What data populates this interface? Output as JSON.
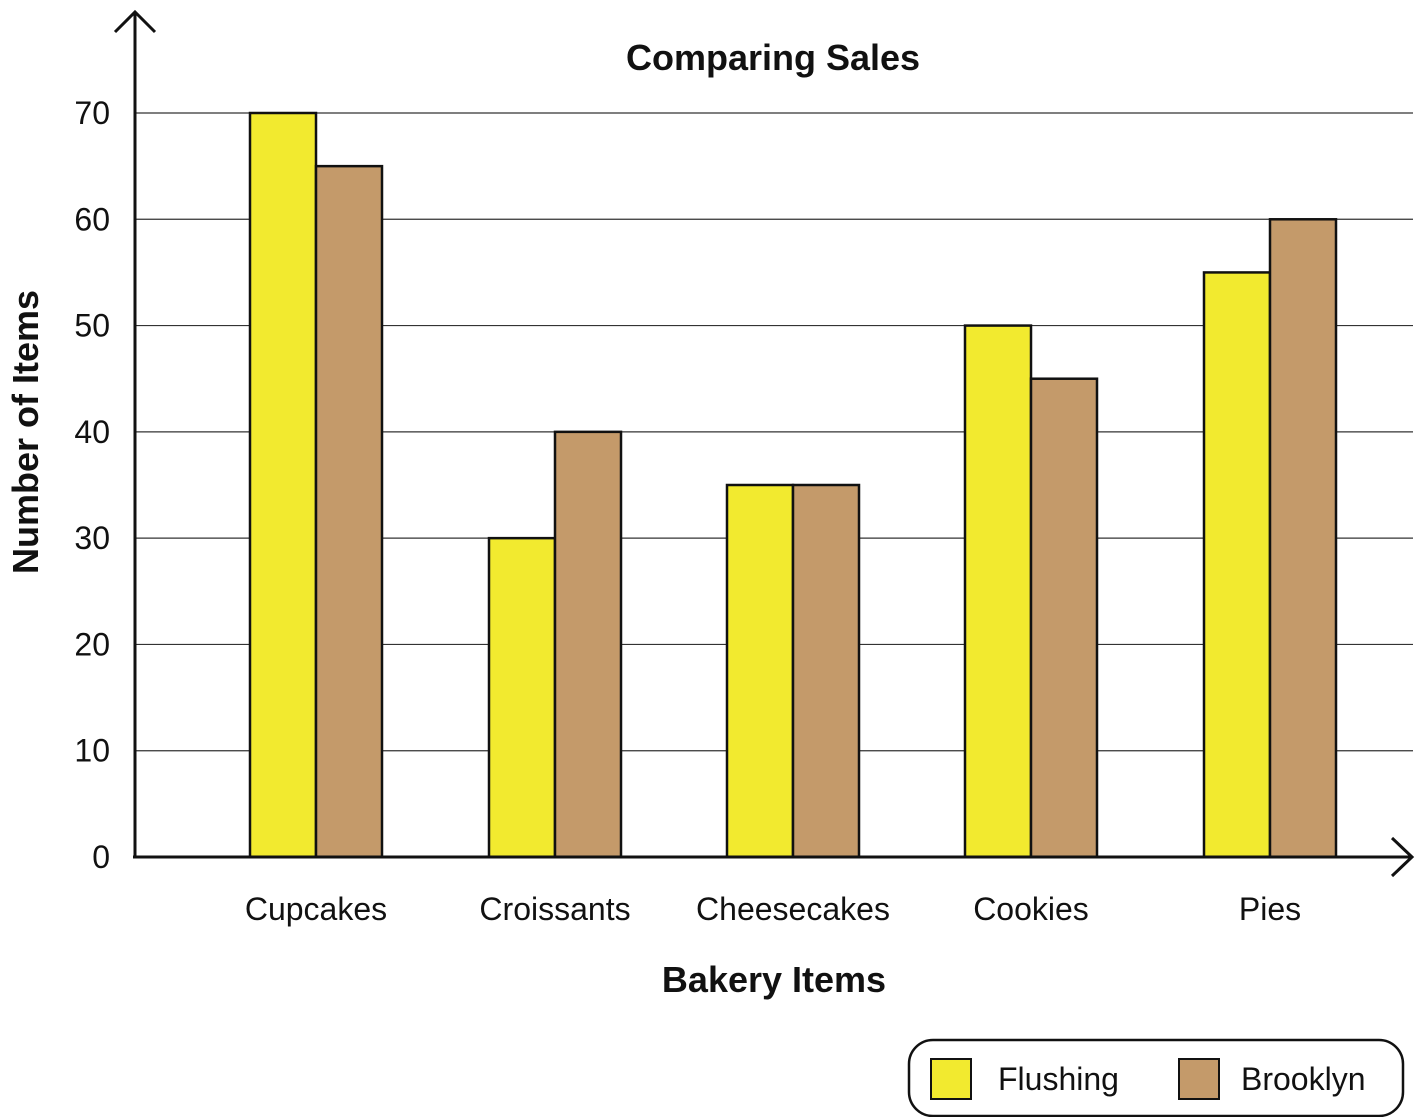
{
  "chart_data": {
    "type": "bar",
    "title": "Comparing Sales",
    "xlabel": "Bakery Items",
    "ylabel": "Number of Items",
    "categories": [
      "Cupcakes",
      "Croissants",
      "Cheesecakes",
      "Cookies",
      "Pies"
    ],
    "series": [
      {
        "name": "Flushing",
        "values": [
          70,
          30,
          35,
          50,
          55
        ],
        "color": "#f2ea2f"
      },
      {
        "name": "Brooklyn",
        "values": [
          65,
          40,
          35,
          45,
          60
        ],
        "color": "#c49a6a"
      }
    ],
    "ylim": [
      0,
      70
    ],
    "yticks": [
      0,
      10,
      20,
      30,
      40,
      50,
      60,
      70
    ],
    "grid": true,
    "legend_position": "bottom-right"
  }
}
